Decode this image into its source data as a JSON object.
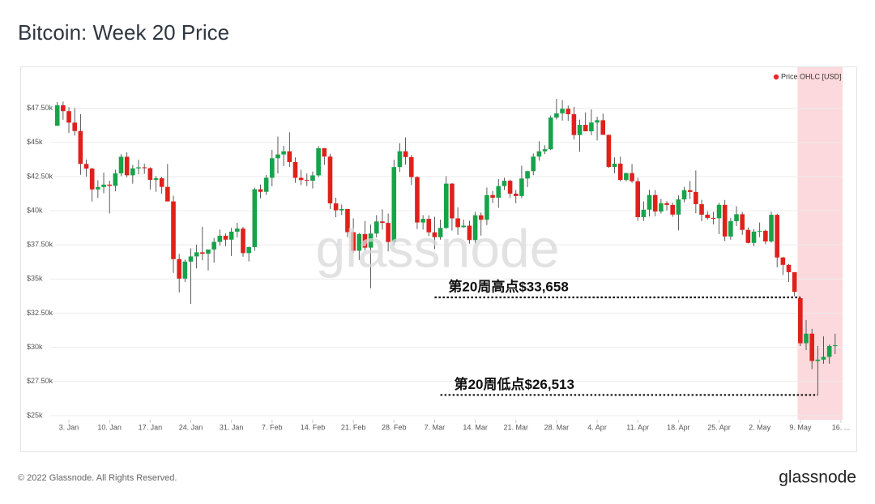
{
  "chart_data": {
    "type": "candlestick",
    "title": "Bitcoin: Week 20 Price",
    "series": [
      {
        "name": "Price OHLC [USD]",
        "color": "#e8262d",
        "up_color": "#16a34a",
        "down_color": "#e0201b",
        "open": [
          46217,
          47722,
          47286,
          46446,
          45833,
          43425,
          43082,
          41558,
          41734,
          41911,
          41821,
          42735,
          43949,
          42592,
          43099,
          43177,
          43113,
          42250,
          42375,
          41744,
          40680,
          36457,
          35030,
          36276,
          36654,
          36954,
          36853,
          37160,
          37717,
          38166,
          37881,
          38466,
          38690,
          36896,
          37336,
          41570,
          41383,
          42413,
          43840,
          44118,
          44347,
          43566,
          42407,
          42244,
          42197,
          42586,
          44575,
          43961,
          40538,
          40031,
          40122,
          38431,
          37069,
          38287,
          37296,
          38332,
          39214,
          39106,
          37709,
          43194,
          44354,
          43925,
          42459,
          39138,
          39400,
          38420,
          38062,
          38737,
          41982,
          39439,
          38794,
          38905,
          37850,
          39666,
          39338,
          41143,
          40951,
          41801,
          42191,
          41247,
          41077,
          42358,
          42892,
          43960,
          44348,
          44500,
          46820,
          47128,
          47465,
          47063,
          45538,
          46282,
          45812,
          46452,
          46622,
          45555,
          43207,
          43445,
          42252,
          42753,
          42158,
          39530,
          40075,
          41147,
          39942,
          40553,
          40424,
          39716,
          40826,
          41502,
          41374,
          40480,
          39709,
          39472,
          39450,
          40426,
          38112,
          39235,
          39742,
          38596,
          37644,
          38469,
          38529,
          37750,
          39698,
          36575,
          36040,
          35502,
          33600,
          30300,
          31000,
          29000,
          29100,
          29300,
          30100
        ],
        "high": [
          47954,
          47990,
          47570,
          47510,
          47071,
          43749,
          43145,
          42228,
          42786,
          42199,
          43001,
          44136,
          44278,
          43346,
          43724,
          43436,
          43179,
          42534,
          42478,
          43413,
          41100,
          36836,
          36433,
          37247,
          37510,
          38825,
          37148,
          38006,
          38617,
          38329,
          38740,
          39116,
          38823,
          37373,
          41681,
          41914,
          42607,
          44453,
          45429,
          44752,
          45738,
          43901,
          43003,
          42719,
          42866,
          44721,
          44579,
          44163,
          40952,
          40447,
          40134,
          39447,
          38375,
          39248,
          38989,
          39678,
          40095,
          39793,
          43728,
          44940,
          45365,
          44086,
          42525,
          39674,
          39666,
          39559,
          39345,
          42521,
          42021,
          40240,
          39340,
          39264,
          39914,
          39865,
          41690,
          41445,
          42315,
          42419,
          42281,
          41520,
          43294,
          42929,
          44187,
          45079,
          44786,
          46966,
          48190,
          48100,
          47698,
          47600,
          46666,
          47196,
          47419,
          46880,
          47105,
          45555,
          43900,
          43958,
          42785,
          43411,
          42414,
          40682,
          41534,
          41516,
          40863,
          40706,
          40594,
          41118,
          41744,
          42177,
          42948,
          40799,
          39957,
          39923,
          40577,
          40788,
          39462,
          40330,
          39909,
          38785,
          38657,
          39136,
          38619,
          39917,
          39776,
          36626,
          36102,
          35502,
          33658,
          32000,
          31350,
          30100,
          30800,
          30200,
          31000
        ],
        "low": [
          46208,
          46654,
          45696,
          45502,
          42628,
          42500,
          40672,
          40939,
          41269,
          39796,
          41420,
          42529,
          42447,
          41982,
          42670,
          42691,
          41551,
          41392,
          41242,
          40672,
          35440,
          34009,
          34785,
          33184,
          35780,
          36375,
          35629,
          36197,
          37432,
          37404,
          36680,
          38051,
          36630,
          36289,
          37070,
          40909,
          41157,
          41784,
          42720,
          43262,
          43216,
          42038,
          41877,
          41798,
          41630,
          42455,
          43354,
          40131,
          39525,
          39687,
          38060,
          36888,
          36393,
          37087,
          34323,
          38043,
          38614,
          37020,
          37466,
          42852,
          43366,
          41875,
          38661,
          38619,
          38153,
          37195,
          37879,
          38674,
          38551,
          38239,
          38756,
          37587,
          37598,
          38177,
          38947,
          40565,
          40208,
          41511,
          40946,
          40550,
          40914,
          41733,
          42598,
          43661,
          44137,
          44432,
          46678,
          46600,
          46579,
          45205,
          44307,
          45818,
          45525,
          45138,
          45544,
          43138,
          42741,
          42147,
          42148,
          42038,
          39267,
          39253,
          39581,
          39595,
          39789,
          40019,
          39553,
          38561,
          40614,
          40853,
          39817,
          39229,
          39349,
          38998,
          38288,
          37775,
          37880,
          38867,
          38231,
          37599,
          37400,
          38062,
          37555,
          37660,
          35853,
          35296,
          34772,
          33744,
          30100,
          29800,
          28400,
          26513,
          28800,
          28800,
          29500
        ],
        "close": [
          47722,
          47286,
          46446,
          45833,
          43425,
          43082,
          41558,
          41734,
          41911,
          41821,
          42735,
          43949,
          42592,
          43099,
          43177,
          43113,
          42250,
          42375,
          41744,
          40680,
          36457,
          35030,
          36276,
          36654,
          36954,
          36853,
          37160,
          37717,
          38166,
          37881,
          38466,
          38690,
          36896,
          37336,
          41570,
          41383,
          42413,
          43840,
          44118,
          44347,
          43566,
          42407,
          42244,
          42197,
          42586,
          44575,
          43961,
          40538,
          40031,
          40122,
          38431,
          37069,
          38287,
          37296,
          38332,
          39214,
          39106,
          37709,
          43194,
          44354,
          43925,
          42459,
          39138,
          39400,
          38420,
          38062,
          38737,
          41982,
          39439,
          38794,
          38905,
          37850,
          39666,
          39338,
          41143,
          40951,
          41801,
          42191,
          41247,
          41077,
          42358,
          42892,
          43960,
          44348,
          44500,
          46820,
          47128,
          47465,
          47063,
          45538,
          46282,
          45812,
          46452,
          46622,
          45555,
          43207,
          43445,
          42252,
          42753,
          42158,
          39530,
          40075,
          41147,
          39942,
          40553,
          40424,
          39716,
          40826,
          41502,
          41374,
          40480,
          39709,
          39472,
          39450,
          40426,
          38112,
          39235,
          39742,
          38596,
          37644,
          38469,
          38529,
          37750,
          39698,
          36575,
          36040,
          35502,
          34059,
          30300,
          31000,
          29000,
          29100,
          29300,
          30100,
          30150
        ]
      }
    ],
    "x": [
      "01-01",
      "01-02",
      "01-03",
      "01-04",
      "01-05",
      "01-06",
      "01-07",
      "01-08",
      "01-09",
      "01-10",
      "01-11",
      "01-12",
      "01-13",
      "01-14",
      "01-15",
      "01-16",
      "01-17",
      "01-18",
      "01-19",
      "01-20",
      "01-21",
      "01-22",
      "01-23",
      "01-24",
      "01-25",
      "01-26",
      "01-27",
      "01-28",
      "01-29",
      "01-30",
      "01-31",
      "02-01",
      "02-02",
      "02-03",
      "02-04",
      "02-05",
      "02-06",
      "02-07",
      "02-08",
      "02-09",
      "02-10",
      "02-11",
      "02-12",
      "02-13",
      "02-14",
      "02-15",
      "02-16",
      "02-17",
      "02-18",
      "02-19",
      "02-20",
      "02-21",
      "02-22",
      "02-23",
      "02-24",
      "02-25",
      "02-26",
      "02-27",
      "02-28",
      "03-01",
      "03-02",
      "03-03",
      "03-04",
      "03-05",
      "03-06",
      "03-07",
      "03-08",
      "03-09",
      "03-10",
      "03-11",
      "03-12",
      "03-13",
      "03-14",
      "03-15",
      "03-16",
      "03-17",
      "03-18",
      "03-19",
      "03-20",
      "03-21",
      "03-22",
      "03-23",
      "03-24",
      "03-25",
      "03-26",
      "03-27",
      "03-28",
      "03-29",
      "03-30",
      "03-31",
      "04-01",
      "04-02",
      "04-03",
      "04-04",
      "04-05",
      "04-06",
      "04-07",
      "04-08",
      "04-09",
      "04-10",
      "04-11",
      "04-12",
      "04-13",
      "04-14",
      "04-15",
      "04-16",
      "04-17",
      "04-18",
      "04-19",
      "04-20",
      "04-21",
      "04-22",
      "04-23",
      "04-24",
      "04-25",
      "04-26",
      "04-27",
      "04-28",
      "04-29",
      "04-30",
      "05-01",
      "05-02",
      "05-03",
      "05-04",
      "05-05",
      "05-06",
      "05-07",
      "05-08",
      "05-09",
      "05-10",
      "05-11",
      "05-12",
      "05-13",
      "05-14",
      "05-15"
    ],
    "xlim": [
      "01-01",
      "05-16"
    ],
    "xticks": [
      {
        "value": "01-03",
        "label": "3. Jan"
      },
      {
        "value": "01-10",
        "label": "10. Jan"
      },
      {
        "value": "01-17",
        "label": "17. Jan"
      },
      {
        "value": "01-24",
        "label": "24. Jan"
      },
      {
        "value": "01-31",
        "label": "31. Jan"
      },
      {
        "value": "02-07",
        "label": "7. Feb"
      },
      {
        "value": "02-14",
        "label": "14. Feb"
      },
      {
        "value": "02-21",
        "label": "21. Feb"
      },
      {
        "value": "02-28",
        "label": "28. Feb"
      },
      {
        "value": "03-07",
        "label": "7. Mar"
      },
      {
        "value": "03-14",
        "label": "14. Mar"
      },
      {
        "value": "03-21",
        "label": "21. Mar"
      },
      {
        "value": "03-28",
        "label": "28. Mar"
      },
      {
        "value": "04-04",
        "label": "4. Apr"
      },
      {
        "value": "04-11",
        "label": "11. Apr"
      },
      {
        "value": "04-18",
        "label": "18. Apr"
      },
      {
        "value": "04-25",
        "label": "25. Apr"
      },
      {
        "value": "05-02",
        "label": "2. May"
      },
      {
        "value": "05-09",
        "label": "9. May"
      },
      {
        "value": "05-16",
        "label": "16. ..."
      }
    ],
    "ylim": [
      24700,
      50500
    ],
    "yticks": [
      {
        "value": 25000,
        "label": "$25k"
      },
      {
        "value": 27500,
        "label": "$27.50k"
      },
      {
        "value": 30000,
        "label": "$30k"
      },
      {
        "value": 32500,
        "label": "$32.50k"
      },
      {
        "value": 35000,
        "label": "$35k"
      },
      {
        "value": 37500,
        "label": "$37.50k"
      },
      {
        "value": 40000,
        "label": "$40k"
      },
      {
        "value": 42500,
        "label": "$42.50k"
      },
      {
        "value": 45000,
        "label": "$45k"
      },
      {
        "value": 47500,
        "label": "$47.50k"
      }
    ],
    "grid": true,
    "legend": "top-right",
    "highlight": {
      "from": "05-09",
      "to": "05-16",
      "color": "#fcd9dc"
    },
    "annotations": [
      {
        "text": "第20周高点$33,658",
        "value": 33658,
        "from": "03-07",
        "to": "05-09"
      },
      {
        "text": "第20周低点$26,513",
        "value": 26513,
        "from": "03-08",
        "to": "05-12"
      }
    ],
    "watermark": "glassnode"
  },
  "footer": {
    "copyright": "© 2022 Glassnode. All Rights Reserved.",
    "logo": "glassnode"
  }
}
